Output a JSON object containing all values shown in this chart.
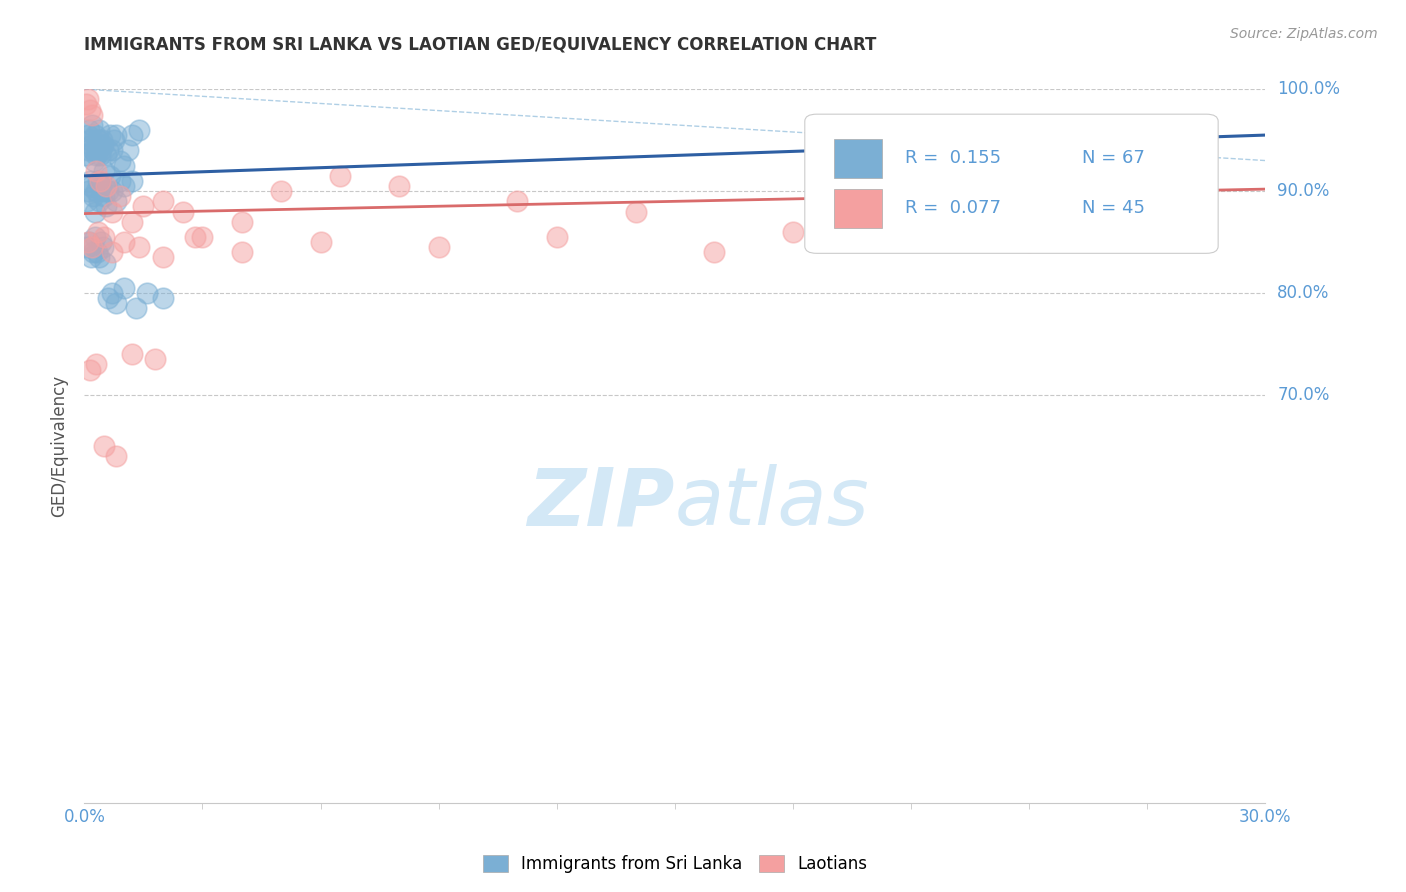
{
  "title": "IMMIGRANTS FROM SRI LANKA VS LAOTIAN GED/EQUIVALENCY CORRELATION CHART",
  "source_text": "Source: ZipAtlas.com",
  "ylabel": "GED/Equivalency",
  "legend_label1": "Immigrants from Sri Lanka",
  "legend_label2": "Laotians",
  "legend_R1": "R =  0.155",
  "legend_N1": "N = 67",
  "legend_R2": "R =  0.077",
  "legend_N2": "N = 45",
  "xmin": 0.0,
  "xmax": 30.0,
  "ymin": 30.0,
  "ymax": 100.0,
  "yticks": [
    70,
    80,
    90,
    100
  ],
  "color_blue": "#7bafd4",
  "color_pink": "#f4a0a0",
  "color_trendline_blue": "#2e5fa3",
  "color_trendline_pink": "#d96b6b",
  "color_axis_labels": "#5b9bd5",
  "color_grid": "#c8c8c8",
  "color_source": "#999999",
  "watermark_color": "#cce4f5",
  "sri_lanka_x": [
    0.05,
    0.08,
    0.1,
    0.12,
    0.15,
    0.18,
    0.2,
    0.22,
    0.25,
    0.28,
    0.3,
    0.33,
    0.35,
    0.38,
    0.4,
    0.42,
    0.45,
    0.48,
    0.5,
    0.55,
    0.6,
    0.65,
    0.7,
    0.75,
    0.8,
    0.9,
    1.0,
    1.1,
    1.2,
    1.4,
    0.06,
    0.1,
    0.14,
    0.18,
    0.22,
    0.26,
    0.3,
    0.34,
    0.38,
    0.42,
    0.46,
    0.5,
    0.55,
    0.6,
    0.65,
    0.7,
    0.8,
    0.9,
    1.0,
    1.2,
    0.07,
    0.12,
    0.17,
    0.22,
    0.27,
    0.32,
    0.37,
    0.42,
    0.47,
    0.52,
    0.6,
    0.7,
    0.8,
    1.0,
    1.3,
    1.6,
    2.0
  ],
  "sri_lanka_y": [
    93.5,
    94.0,
    95.5,
    96.0,
    95.0,
    94.5,
    96.5,
    94.0,
    93.0,
    95.5,
    93.5,
    94.0,
    95.0,
    96.0,
    93.5,
    94.0,
    95.0,
    94.5,
    92.0,
    93.5,
    94.0,
    95.5,
    94.0,
    95.0,
    95.5,
    93.0,
    92.5,
    94.0,
    95.5,
    96.0,
    89.0,
    90.0,
    91.0,
    90.5,
    89.5,
    88.0,
    90.0,
    91.0,
    89.0,
    90.5,
    90.0,
    89.5,
    88.5,
    90.0,
    91.5,
    90.0,
    89.0,
    91.0,
    90.5,
    91.0,
    84.5,
    85.0,
    83.5,
    84.0,
    85.5,
    84.0,
    83.5,
    85.0,
    84.5,
    83.0,
    79.5,
    80.0,
    79.0,
    80.5,
    78.5,
    80.0,
    79.5
  ],
  "laotian_x": [
    0.05,
    0.1,
    0.15,
    0.2,
    0.3,
    0.4,
    0.55,
    0.7,
    0.9,
    1.2,
    1.5,
    2.0,
    2.5,
    3.0,
    4.0,
    5.0,
    6.5,
    8.0,
    11.0,
    14.0,
    18.0,
    22.0,
    25.0,
    0.1,
    0.2,
    0.35,
    0.5,
    0.7,
    1.0,
    1.4,
    2.0,
    2.8,
    4.0,
    6.0,
    9.0,
    12.0,
    16.0,
    20.0,
    24.0,
    0.15,
    0.3,
    0.5,
    0.8,
    1.2,
    1.8
  ],
  "laotian_y": [
    98.5,
    99.0,
    98.0,
    97.5,
    92.0,
    91.0,
    90.5,
    88.0,
    89.5,
    87.0,
    88.5,
    89.0,
    88.0,
    85.5,
    87.0,
    90.0,
    91.5,
    90.5,
    89.0,
    88.0,
    86.0,
    91.0,
    90.0,
    85.0,
    84.5,
    86.0,
    85.5,
    84.0,
    85.0,
    84.5,
    83.5,
    85.5,
    84.0,
    85.0,
    84.5,
    85.5,
    84.0,
    86.0,
    85.0,
    72.5,
    73.0,
    65.0,
    64.0,
    74.0,
    73.5
  ]
}
